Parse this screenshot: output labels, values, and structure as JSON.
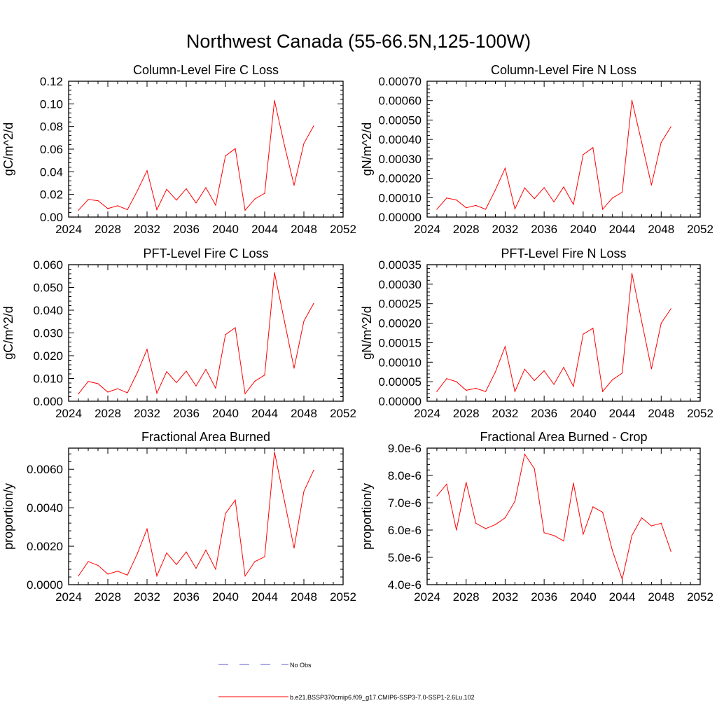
{
  "page_title": "Northwest Canada (55-66.5N,125-100W)",
  "legend": {
    "obs_label": "No Obs",
    "model_label": "b.e21.BSSP370cmip6.f09_g17.CMIP6-SSP3-7.0-SSP1-2.6Lu.102",
    "obs_color": "#5a5ad0",
    "model_color": "#ff0000"
  },
  "chart_data": [
    {
      "type": "line",
      "title": "Column-Level Fire C Loss",
      "ylabel": "gC/m^2/d",
      "xlim": [
        2024,
        2052
      ],
      "xticks": [
        "2024",
        "2028",
        "2032",
        "2036",
        "2040",
        "2044",
        "2048",
        "2052"
      ],
      "ylim": [
        0,
        0.12
      ],
      "yticks": [
        "0.00",
        "0.02",
        "0.04",
        "0.06",
        "0.08",
        "0.10",
        "0.12"
      ],
      "series": [
        {
          "x": [
            2025,
            2026,
            2027,
            2028,
            2029,
            2030,
            2031,
            2032,
            2033,
            2034,
            2035,
            2036,
            2037,
            2038,
            2039,
            2040,
            2041,
            2042,
            2043,
            2044,
            2045,
            2046,
            2047,
            2048,
            2049
          ],
          "values": [
            0.006,
            0.0155,
            0.0145,
            0.0075,
            0.01,
            0.0065,
            0.023,
            0.041,
            0.0065,
            0.0245,
            0.015,
            0.025,
            0.0125,
            0.026,
            0.0105,
            0.054,
            0.0605,
            0.006,
            0.016,
            0.021,
            0.103,
            0.064,
            0.028,
            0.065,
            0.0805
          ]
        }
      ]
    },
    {
      "type": "line",
      "title": "Column-Level Fire N Loss",
      "ylabel": "gN/m^2/d",
      "xlim": [
        2024,
        2052
      ],
      "xticks": [
        "2024",
        "2028",
        "2032",
        "2036",
        "2040",
        "2044",
        "2048",
        "2052"
      ],
      "ylim": [
        0,
        0.0007
      ],
      "yticks": [
        "0.00000",
        "0.00010",
        "0.00020",
        "0.00030",
        "0.00040",
        "0.00050",
        "0.00060",
        "0.00070"
      ],
      "series": [
        {
          "x": [
            2025,
            2026,
            2027,
            2028,
            2029,
            2030,
            2031,
            2032,
            2033,
            2034,
            2035,
            2036,
            2037,
            2038,
            2039,
            2040,
            2041,
            2042,
            2043,
            2044,
            2045,
            2046,
            2047,
            2048,
            2049
          ],
          "values": [
            4e-05,
            9.8e-05,
            8.8e-05,
            4.8e-05,
            6e-05,
            4e-05,
            0.00014,
            0.000252,
            4.2e-05,
            0.00015,
            9.5e-05,
            0.000152,
            7.8e-05,
            0.000155,
            6.5e-05,
            0.000322,
            0.000358,
            4e-05,
            9.8e-05,
            0.000128,
            0.000602,
            0.000385,
            0.000165,
            0.000385,
            0.000465
          ]
        }
      ]
    },
    {
      "type": "line",
      "title": "PFT-Level Fire C Loss",
      "ylabel": "gC/m^2/d",
      "xlim": [
        2024,
        2052
      ],
      "xticks": [
        "2024",
        "2028",
        "2032",
        "2036",
        "2040",
        "2044",
        "2048",
        "2052"
      ],
      "ylim": [
        0,
        0.06
      ],
      "yticks": [
        "0.000",
        "0.010",
        "0.020",
        "0.030",
        "0.040",
        "0.050",
        "0.060"
      ],
      "series": [
        {
          "x": [
            2025,
            2026,
            2027,
            2028,
            2029,
            2030,
            2031,
            2032,
            2033,
            2034,
            2035,
            2036,
            2037,
            2038,
            2039,
            2040,
            2041,
            2042,
            2043,
            2044,
            2045,
            2046,
            2047,
            2048,
            2049
          ],
          "values": [
            0.0032,
            0.0087,
            0.0077,
            0.004,
            0.0055,
            0.0037,
            0.0125,
            0.0228,
            0.0035,
            0.013,
            0.0082,
            0.0132,
            0.0067,
            0.014,
            0.0057,
            0.0293,
            0.0323,
            0.0033,
            0.0088,
            0.0115,
            0.0565,
            0.0355,
            0.0145,
            0.0352,
            0.043
          ]
        }
      ]
    },
    {
      "type": "line",
      "title": "PFT-Level Fire N Loss",
      "ylabel": "gN/m^2/d",
      "xlim": [
        2024,
        2052
      ],
      "xticks": [
        "2024",
        "2028",
        "2032",
        "2036",
        "2040",
        "2044",
        "2048",
        "2052"
      ],
      "ylim": [
        0,
        0.00035
      ],
      "yticks": [
        "0.00000",
        "0.00005",
        "0.00010",
        "0.00015",
        "0.00020",
        "0.00025",
        "0.00030",
        "0.00035"
      ],
      "series": [
        {
          "x": [
            2025,
            2026,
            2027,
            2028,
            2029,
            2030,
            2031,
            2032,
            2033,
            2034,
            2035,
            2036,
            2037,
            2038,
            2039,
            2040,
            2041,
            2042,
            2043,
            2044,
            2045,
            2046,
            2047,
            2048,
            2049
          ],
          "values": [
            2.5e-05,
            5.8e-05,
            5e-05,
            2.8e-05,
            3.3e-05,
            2.5e-05,
            7.5e-05,
            0.00014,
            2.5e-05,
            8.2e-05,
            5.3e-05,
            7.8e-05,
            4.3e-05,
            8.7e-05,
            3.8e-05,
            0.000172,
            0.000187,
            2.5e-05,
            5.5e-05,
            7.2e-05,
            0.000328,
            0.000205,
            8.3e-05,
            0.0002,
            0.000237
          ]
        }
      ]
    },
    {
      "type": "line",
      "title": "Fractional Area Burned",
      "ylabel": "proportion/y",
      "xlim": [
        2024,
        2052
      ],
      "xticks": [
        "2024",
        "2028",
        "2032",
        "2036",
        "2040",
        "2044",
        "2048",
        "2052"
      ],
      "ylim": [
        0,
        0.0071
      ],
      "yticks": [
        "0.0000",
        "0.0020",
        "0.0040",
        "0.0060"
      ],
      "yticks_at": [
        0,
        0.002,
        0.004,
        0.006
      ],
      "series": [
        {
          "x": [
            2025,
            2026,
            2027,
            2028,
            2029,
            2030,
            2031,
            2032,
            2033,
            2034,
            2035,
            2036,
            2037,
            2038,
            2039,
            2040,
            2041,
            2042,
            2043,
            2044,
            2045,
            2046,
            2047,
            2048,
            2049
          ],
          "values": [
            0.00045,
            0.0012,
            0.001,
            0.00055,
            0.0007,
            0.0005,
            0.0016,
            0.0029,
            0.00045,
            0.00165,
            0.00105,
            0.0017,
            0.00085,
            0.0018,
            0.0008,
            0.0037,
            0.0044,
            0.00045,
            0.0012,
            0.00145,
            0.0069,
            0.0044,
            0.0019,
            0.00485,
            0.00595
          ]
        }
      ]
    },
    {
      "type": "line",
      "title": "Fractional Area Burned - Crop",
      "ylabel": "proportion/y",
      "xlim": [
        2024,
        2052
      ],
      "xticks": [
        "2024",
        "2028",
        "2032",
        "2036",
        "2040",
        "2044",
        "2048",
        "2052"
      ],
      "ylim": [
        4e-06,
        9e-06
      ],
      "yticks": [
        "4.0e-6",
        "5.0e-6",
        "6.0e-6",
        "7.0e-6",
        "8.0e-6",
        "9.0e-6"
      ],
      "series": [
        {
          "x": [
            2025,
            2026,
            2027,
            2028,
            2029,
            2030,
            2031,
            2032,
            2033,
            2034,
            2035,
            2036,
            2037,
            2038,
            2039,
            2040,
            2041,
            2042,
            2043,
            2044,
            2045,
            2046,
            2047,
            2048,
            2049
          ],
          "values": [
            7.25e-06,
            7.68e-06,
            6e-06,
            7.75e-06,
            6.25e-06,
            6.05e-06,
            6.2e-06,
            6.45e-06,
            7.05e-06,
            8.78e-06,
            8.25e-06,
            5.9e-06,
            5.8e-06,
            5.6e-06,
            7.72e-06,
            5.85e-06,
            6.85e-06,
            6.65e-06,
            5.25e-06,
            4.2e-06,
            5.8e-06,
            6.45e-06,
            6.15e-06,
            6.25e-06,
            5.22e-06
          ]
        }
      ]
    }
  ]
}
